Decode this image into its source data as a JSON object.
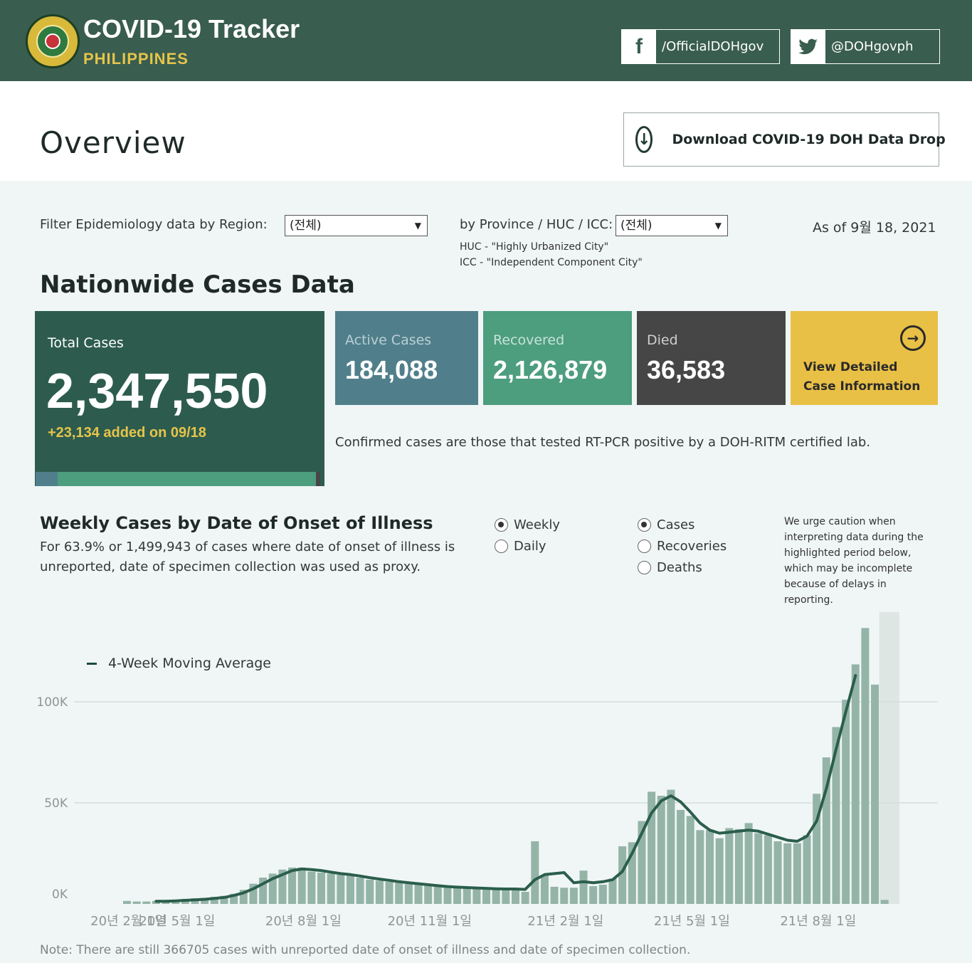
{
  "header": {
    "title": "COVID-19 Tracker",
    "subtitle": "PHILIPPINES",
    "facebook": {
      "icon": "facebook-icon",
      "label": "/OfficialDOHgov"
    },
    "twitter": {
      "icon": "twitter-icon",
      "label": "@DOHgovph"
    }
  },
  "overview": {
    "title": "Overview",
    "download_label": "Download COVID-19 DOH Data Drop"
  },
  "filters": {
    "region_label": "Filter Epidemiology data by Region:",
    "region_value": "(전체)",
    "province_label": "by Province / HUC / ICC:",
    "province_value": "(전체)",
    "huc_note": "HUC - \"Highly Urbanized City\"",
    "icc_note": "ICC - \"Independent Component City\"",
    "as_of": "As of 9월 18, 2021"
  },
  "cases": {
    "section_title": "Nationwide Cases Data",
    "total": {
      "label": "Total Cases",
      "value": "2,347,550",
      "added": "+23,134 added on 09/18"
    },
    "total_bar_fraction": {
      "active": 0.078,
      "recovered": 0.906,
      "died": 0.016
    },
    "active": {
      "label": "Active Cases",
      "value": "184,088"
    },
    "recovered": {
      "label": "Recovered",
      "value": "2,126,879"
    },
    "died": {
      "label": "Died",
      "value": "36,583"
    },
    "detail_line1": "View Detailed",
    "detail_line2": "Case Information",
    "confirmed_note": "Confirmed cases are those that tested RT-PCR positive by a DOH-RITM certified lab."
  },
  "weekly": {
    "title": "Weekly Cases by Date of Onset of Illness",
    "subtitle_line1": "For 63.9% or 1,499,943 of cases where date of onset of illness is",
    "subtitle_line2": "unreported, date of specimen collection was used as proxy.",
    "period_options": [
      {
        "label": "Weekly",
        "selected": true
      },
      {
        "label": "Daily",
        "selected": false
      }
    ],
    "metric_options": [
      {
        "label": "Cases",
        "selected": true
      },
      {
        "label": "Recoveries",
        "selected": false
      },
      {
        "label": "Deaths",
        "selected": false
      }
    ],
    "caution_line1": "We urge caution when",
    "caution_line2": "interpreting data during the",
    "caution_line3": "highlighted period below,",
    "caution_line4": "which may be incomplete",
    "caution_line5": "because of delays in",
    "caution_line6": "reporting.",
    "legend_label": "4-Week Moving Average",
    "footnote": "Note: There are still 366705 cases with unreported date of onset of illness and date of specimen collection."
  },
  "colors": {
    "header_bg": "#395d4f",
    "accent_yellow": "#e6c44a",
    "active": "#507f8b",
    "recovered": "#4d9d7f",
    "died": "#464646",
    "bar": "#95b4a8",
    "line": "#2b5e4c"
  },
  "chart_data": {
    "type": "bar",
    "title": "",
    "ylabel": "",
    "xlabel": "",
    "ylim": [
      0,
      140000
    ],
    "grid": true,
    "y_ticks": [
      {
        "value": 0,
        "label": "0K"
      },
      {
        "value": 50000,
        "label": "50K"
      },
      {
        "value": 100000,
        "label": "100K"
      }
    ],
    "x_ticks": [
      {
        "week": 1,
        "label": "20년 2월 1일"
      },
      {
        "week": 6,
        "label": "20년 5월 1일"
      },
      {
        "week": 19,
        "label": "20년 8월 1일"
      },
      {
        "week": 32,
        "label": "20년 11월 1일"
      },
      {
        "week": 46,
        "label": "21년 2월 1일"
      },
      {
        "week": 59,
        "label": "21년 5월 1일"
      },
      {
        "week": 72,
        "label": "21년 8월 1일"
      }
    ],
    "highlight_from_week": 79,
    "series": [
      {
        "name": "Cases",
        "values": [
          1500,
          1200,
          1200,
          1500,
          1800,
          2000,
          2500,
          2800,
          3000,
          3500,
          4000,
          5000,
          7000,
          10000,
          13000,
          15000,
          17000,
          18000,
          18000,
          16000,
          15500,
          15000,
          14500,
          14000,
          13000,
          12000,
          11500,
          11000,
          10500,
          10000,
          9500,
          9000,
          8500,
          8500,
          8000,
          8000,
          7800,
          7800,
          7500,
          7500,
          7400,
          6000,
          31000,
          14000,
          8500,
          8000,
          8000,
          16500,
          8800,
          9500,
          12500,
          28500,
          30500,
          41000,
          55500,
          53500,
          56500,
          46500,
          43500,
          36500,
          36500,
          32500,
          37500,
          37000,
          40000,
          35000,
          34000,
          31000,
          30000,
          30000,
          34000,
          54500,
          72500,
          87500,
          101000,
          118500,
          136500,
          108500,
          2000
        ]
      },
      {
        "name": "4-Week Moving Average",
        "values": [
          null,
          null,
          null,
          1300,
          1300,
          1500,
          1750,
          2000,
          2300,
          2700,
          3200,
          4200,
          5500,
          7500,
          10000,
          12500,
          14500,
          16500,
          17300,
          17000,
          16500,
          15700,
          15000,
          14500,
          13800,
          13000,
          12300,
          11700,
          11000,
          10500,
          10000,
          9500,
          9000,
          8600,
          8300,
          8100,
          7900,
          7700,
          7500,
          7400,
          7400,
          7200,
          12000,
          14500,
          15000,
          15500,
          10500,
          11000,
          10500,
          11000,
          12000,
          16000,
          25000,
          35000,
          45000,
          51000,
          53500,
          50500,
          45500,
          40000,
          36500,
          35000,
          35500,
          36000,
          36500,
          36000,
          34500,
          33000,
          31500,
          31000,
          33500,
          41000,
          57000,
          76500,
          95000,
          113000,
          null,
          null,
          null
        ]
      }
    ]
  }
}
